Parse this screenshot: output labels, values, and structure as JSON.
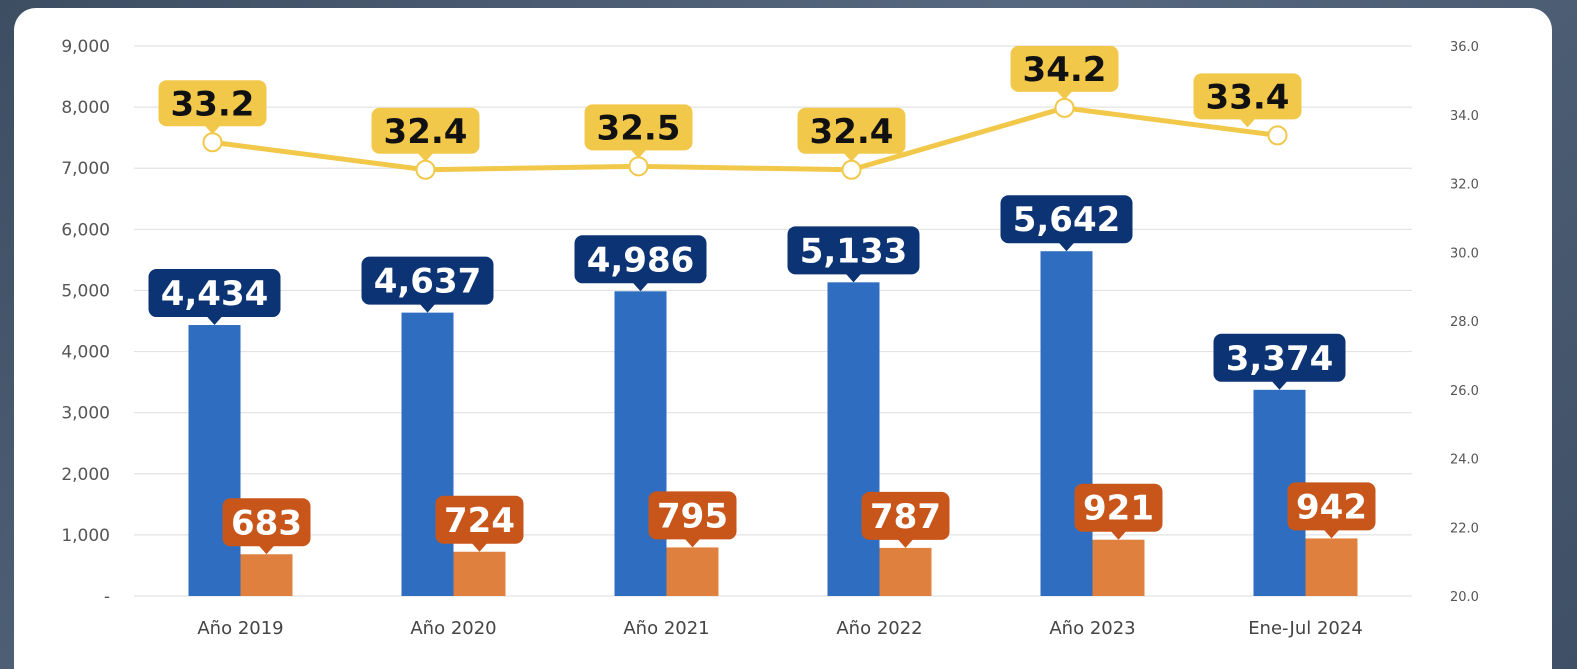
{
  "chart_data": {
    "type": "bar",
    "categories": [
      "Año 2019",
      "Año 2020",
      "Año 2021",
      "Año 2022",
      "Año 2023",
      "Ene-Jul 2024"
    ],
    "series": [
      {
        "kind": "bar",
        "axis": "left",
        "color": "#2e6dbf",
        "label_color": "#0c3374",
        "values": [
          4434,
          4637,
          4986,
          5133,
          5642,
          3374
        ],
        "labels": [
          "4,434",
          "4,637",
          "4,986",
          "5,133",
          "5,642",
          "3,374"
        ]
      },
      {
        "kind": "bar",
        "axis": "left",
        "color": "#e0803f",
        "label_color": "#c8561b",
        "values": [
          683,
          724,
          795,
          787,
          921,
          942
        ],
        "labels": [
          "683",
          "724",
          "795",
          "787",
          "921",
          "942"
        ]
      },
      {
        "kind": "line",
        "axis": "right",
        "color": "#f2c84b",
        "values": [
          33.2,
          32.4,
          32.5,
          32.4,
          34.2,
          33.4
        ],
        "labels": [
          "33.2",
          "32.4",
          "32.5",
          "32.4",
          "34.2",
          "33.4"
        ]
      }
    ],
    "y_left": {
      "ylim": [
        0,
        9000
      ],
      "ticks": [
        "-",
        "1,000",
        "2,000",
        "3,000",
        "4,000",
        "5,000",
        "6,000",
        "7,000",
        "8,000",
        "9,000"
      ]
    },
    "y_right": {
      "ylim": [
        20,
        36
      ],
      "ticks": [
        "20.0",
        "22.0",
        "24.0",
        "26.0",
        "28.0",
        "30.0",
        "32.0",
        "34.0",
        "36.0"
      ]
    },
    "grid": true,
    "legend": "none"
  }
}
